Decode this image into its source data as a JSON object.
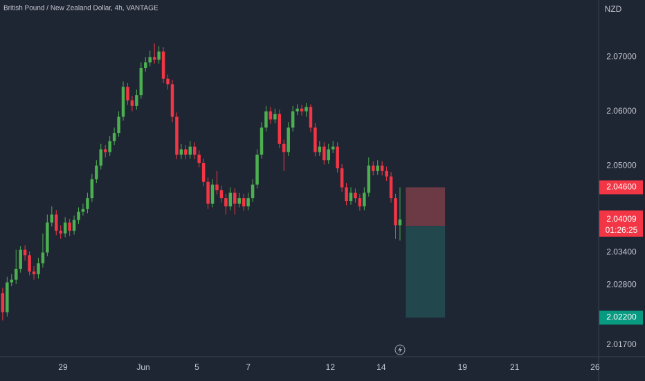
{
  "chart_data": {
    "type": "candlestick",
    "title": "British Pound / New Zealand Dollar, 4h, VANTAGE",
    "currency": "NZD",
    "up_color": "#4caf50",
    "down_color": "#f23645",
    "open": [
      2.0265,
      2.023,
      2.0285,
      2.029,
      2.031,
      2.0345,
      2.0335,
      2.0305,
      2.03,
      2.032,
      2.034,
      2.0395,
      2.041,
      2.038,
      2.0375,
      2.0395,
      2.038,
      2.04,
      2.0415,
      2.042,
      2.044,
      2.0475,
      2.05,
      2.053,
      2.0525,
      2.0545,
      2.056,
      2.059,
      2.0645,
      2.062,
      2.061,
      2.063,
      2.068,
      2.069,
      2.07,
      2.0695,
      2.071,
      2.066,
      2.065,
      2.059,
      2.052,
      2.053,
      2.052,
      2.0535,
      2.052,
      2.0505,
      2.047,
      2.043,
      2.0465,
      2.0455,
      2.044,
      2.0425,
      2.045,
      2.043,
      2.044,
      2.0425,
      2.044,
      2.0465,
      2.052,
      2.057,
      2.06,
      2.0585,
      2.0595,
      2.054,
      2.0525,
      2.057,
      2.06,
      2.0605,
      2.06,
      2.0608,
      2.057,
      2.0525,
      2.0535,
      2.051,
      2.053,
      2.0535,
      2.0495,
      2.046,
      2.0435,
      2.045,
      2.044,
      2.0425,
      2.045,
      2.05,
      2.049,
      2.05,
      2.049,
      2.048,
      2.044,
      2.039
    ],
    "high": [
      2.0275,
      2.0295,
      2.03,
      2.0345,
      2.0352,
      2.0353,
      2.0342,
      2.0315,
      2.033,
      2.0375,
      2.041,
      2.0425,
      2.0418,
      2.039,
      2.0405,
      2.0402,
      2.0408,
      2.0423,
      2.043,
      2.045,
      2.0485,
      2.051,
      2.054,
      2.0538,
      2.0555,
      2.057,
      2.06,
      2.0655,
      2.0652,
      2.0628,
      2.064,
      2.069,
      2.07,
      2.0712,
      2.0725,
      2.072,
      2.0718,
      2.0668,
      2.0658,
      2.0598,
      2.054,
      2.0538,
      2.0545,
      2.0543,
      2.0528,
      2.0513,
      2.0478,
      2.0475,
      2.049,
      2.0463,
      2.0448,
      2.046,
      2.0458,
      2.045,
      2.0448,
      2.045,
      2.0475,
      2.053,
      2.058,
      2.061,
      2.0608,
      2.0605,
      2.0603,
      2.0548,
      2.058,
      2.061,
      2.0613,
      2.0612,
      2.0615,
      2.0613,
      2.0578,
      2.0545,
      2.0543,
      2.054,
      2.0545,
      2.0543,
      2.0503,
      2.0468,
      2.046,
      2.0458,
      2.0448,
      2.046,
      2.0515,
      2.0508,
      2.051,
      2.0508,
      2.0498,
      2.0488,
      2.0448,
      2.046
    ],
    "low": [
      2.0215,
      2.0222,
      2.0278,
      2.0282,
      2.0303,
      2.0325,
      2.0298,
      2.029,
      2.0292,
      2.0312,
      2.0333,
      2.0388,
      2.0372,
      2.0365,
      2.0368,
      2.037,
      2.0373,
      2.0393,
      2.0408,
      2.0412,
      2.0433,
      2.0468,
      2.0493,
      2.0515,
      2.0518,
      2.0538,
      2.0553,
      2.0583,
      2.0612,
      2.06,
      2.0603,
      2.0623,
      2.0673,
      2.0683,
      2.0688,
      2.0688,
      2.0652,
      2.064,
      2.058,
      2.0512,
      2.0512,
      2.0512,
      2.0513,
      2.0512,
      2.0497,
      2.0462,
      2.042,
      2.0423,
      2.0447,
      2.0432,
      2.041,
      2.0418,
      2.041,
      2.0423,
      2.0417,
      2.0418,
      2.0433,
      2.0458,
      2.0513,
      2.0563,
      2.0577,
      2.0578,
      2.0532,
      2.049,
      2.0518,
      2.0563,
      2.0593,
      2.0592,
      2.059,
      2.0562,
      2.0517,
      2.0518,
      2.0502,
      2.0503,
      2.0523,
      2.0487,
      2.0452,
      2.0427,
      2.0428,
      2.0432,
      2.0417,
      2.0418,
      2.0443,
      2.0482,
      2.0483,
      2.0482,
      2.0472,
      2.0432,
      2.0365,
      2.0362
    ],
    "close": [
      2.023,
      2.0285,
      2.029,
      2.031,
      2.0345,
      2.0335,
      2.0305,
      2.03,
      2.032,
      2.034,
      2.0395,
      2.041,
      2.038,
      2.0375,
      2.0395,
      2.038,
      2.04,
      2.0415,
      2.042,
      2.044,
      2.0475,
      2.05,
      2.053,
      2.0525,
      2.0545,
      2.056,
      2.059,
      2.0645,
      2.062,
      2.061,
      2.063,
      2.068,
      2.069,
      2.07,
      2.0695,
      2.071,
      2.066,
      2.065,
      2.059,
      2.052,
      2.053,
      2.052,
      2.0535,
      2.052,
      2.0505,
      2.047,
      2.043,
      2.0465,
      2.0455,
      2.044,
      2.0425,
      2.045,
      2.043,
      2.044,
      2.0425,
      2.044,
      2.0465,
      2.052,
      2.057,
      2.06,
      2.0585,
      2.0595,
      2.054,
      2.0525,
      2.057,
      2.06,
      2.0605,
      2.06,
      2.0608,
      2.057,
      2.0525,
      2.0535,
      2.051,
      2.053,
      2.0535,
      2.0495,
      2.046,
      2.0435,
      2.045,
      2.044,
      2.0425,
      2.045,
      2.05,
      2.049,
      2.05,
      2.049,
      2.048,
      2.044,
      2.039,
      2.04009
    ],
    "countdown": "01:26:25",
    "ylim": [
      2.0148,
      2.0805
    ],
    "yticks": [
      {
        "value": 2.07,
        "label": "2.07000"
      },
      {
        "value": 2.06,
        "label": "2.06000"
      },
      {
        "value": 2.05,
        "label": "2.05000"
      },
      {
        "value": 2.034,
        "label": "2.03400"
      },
      {
        "value": 2.028,
        "label": "2.02800"
      },
      {
        "value": 2.017,
        "label": "2.01700"
      }
    ],
    "xlim": [
      -0.6,
      133.5
    ],
    "xticks": [
      {
        "value": 13.5,
        "label": "29"
      },
      {
        "value": 31.5,
        "label": "Jun"
      },
      {
        "value": 43.5,
        "label": "5"
      },
      {
        "value": 55,
        "label": "7"
      },
      {
        "value": 73.4,
        "label": "12"
      },
      {
        "value": 84.8,
        "label": "14"
      },
      {
        "value": 103,
        "label": "19"
      },
      {
        "value": 114.7,
        "label": "21"
      },
      {
        "value": 132.7,
        "label": "26"
      }
    ],
    "position": {
      "entry": 2.0389,
      "stop": {
        "value": 2.046,
        "label": "2.04600"
      },
      "target": {
        "value": 2.022,
        "label": "2.02200"
      },
      "x_start": 90.3,
      "x_end": 99.1,
      "stop_color": "#6b3a44",
      "target_color": "#22474d",
      "stop_label_color": "#f23645",
      "target_label_color": "#089981"
    }
  }
}
